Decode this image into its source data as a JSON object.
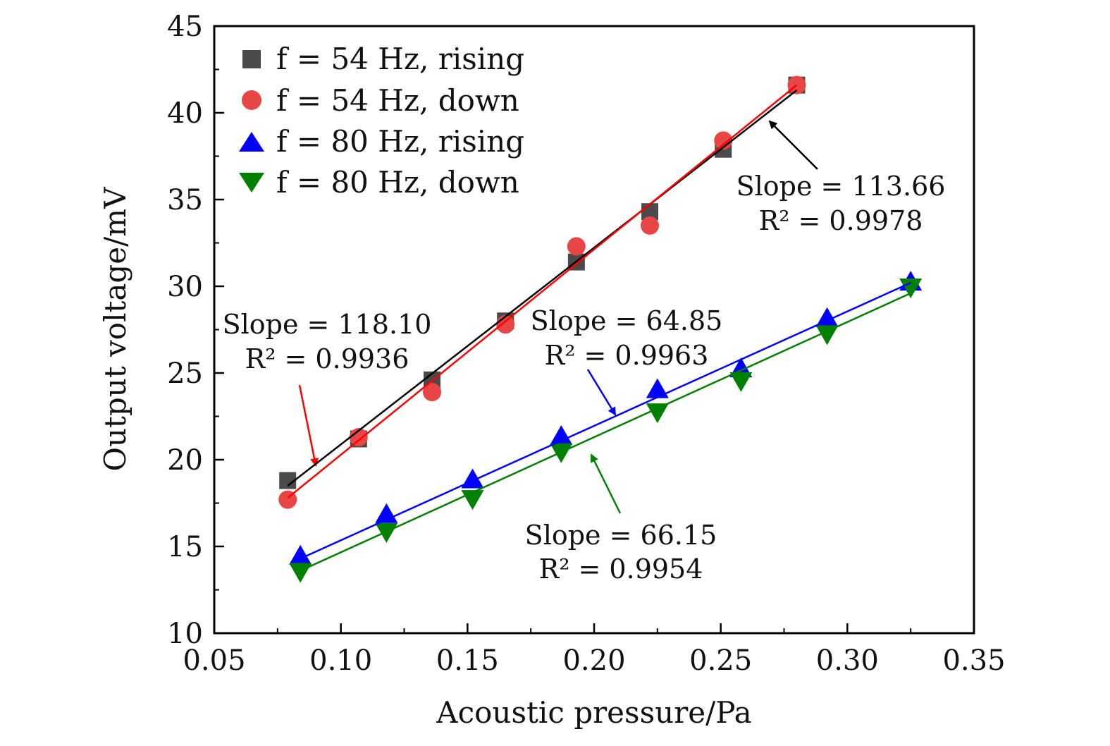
{
  "chart_data": {
    "type": "scatter",
    "title": "",
    "xlabel": "Acoustic pressure/Pa",
    "ylabel": "Output voltage/mV",
    "xlim": [
      0.05,
      0.35
    ],
    "ylim": [
      10,
      45
    ],
    "xticks": [
      "0.05",
      "0.10",
      "0.15",
      "0.20",
      "0.25",
      "0.30",
      "0.35"
    ],
    "yticks": [
      "10",
      "15",
      "20",
      "25",
      "30",
      "35",
      "40",
      "45"
    ],
    "grid": false,
    "legend_position": "top-left",
    "series": [
      {
        "name": "f = 54 Hz, rising",
        "marker": "square",
        "color": "#4a4a4a",
        "line_color": "#000000",
        "x": [
          0.079,
          0.107,
          0.136,
          0.165,
          0.193,
          0.222,
          0.251,
          0.28
        ],
        "y": [
          18.8,
          21.2,
          24.6,
          28.0,
          31.4,
          34.3,
          37.9,
          41.6
        ],
        "fit": [
          [
            0.079,
            18.5
          ],
          [
            0.28,
            41.3
          ]
        ]
      },
      {
        "name": "f = 54 Hz, down",
        "marker": "circle",
        "color": "#e84545",
        "line_color": "#ff0000",
        "x": [
          0.079,
          0.107,
          0.136,
          0.165,
          0.193,
          0.222,
          0.251,
          0.28
        ],
        "y": [
          17.7,
          21.3,
          23.9,
          27.8,
          32.3,
          33.5,
          38.4,
          41.6
        ],
        "fit": [
          [
            0.079,
            17.8
          ],
          [
            0.28,
            41.6
          ]
        ]
      },
      {
        "name": "f = 80 Hz, rising",
        "marker": "triangle-up",
        "color": "#0000ff",
        "line_color": "#0000ff",
        "x": [
          0.084,
          0.118,
          0.152,
          0.187,
          0.225,
          0.258,
          0.292,
          0.325
        ],
        "y": [
          14.4,
          16.8,
          18.8,
          21.3,
          24.0,
          25.2,
          28.1,
          30.2
        ],
        "fit": [
          [
            0.084,
            14.3
          ],
          [
            0.325,
            30.2
          ]
        ]
      },
      {
        "name": "f = 80 Hz, down",
        "marker": "triangle-down",
        "color": "#008000",
        "line_color": "#008000",
        "x": [
          0.084,
          0.118,
          0.152,
          0.187,
          0.225,
          0.258,
          0.292,
          0.325
        ],
        "y": [
          13.6,
          15.9,
          17.8,
          20.5,
          22.8,
          24.6,
          27.3,
          30.0
        ],
        "fit": [
          [
            0.084,
            13.6
          ],
          [
            0.325,
            29.6
          ]
        ]
      }
    ],
    "annotations": [
      {
        "line1": "Slope = 113.66",
        "line2": "R² = 0.9978",
        "color": "#000000"
      },
      {
        "line1": "Slope = 118.10",
        "line2": "R² = 0.9936",
        "color": "#ff0000"
      },
      {
        "line1": "Slope = 64.85",
        "line2": "R² = 0.9963",
        "color": "#0000ff"
      },
      {
        "line1": "Slope = 66.15",
        "line2": "R² = 0.9954",
        "color": "#008000"
      }
    ]
  }
}
